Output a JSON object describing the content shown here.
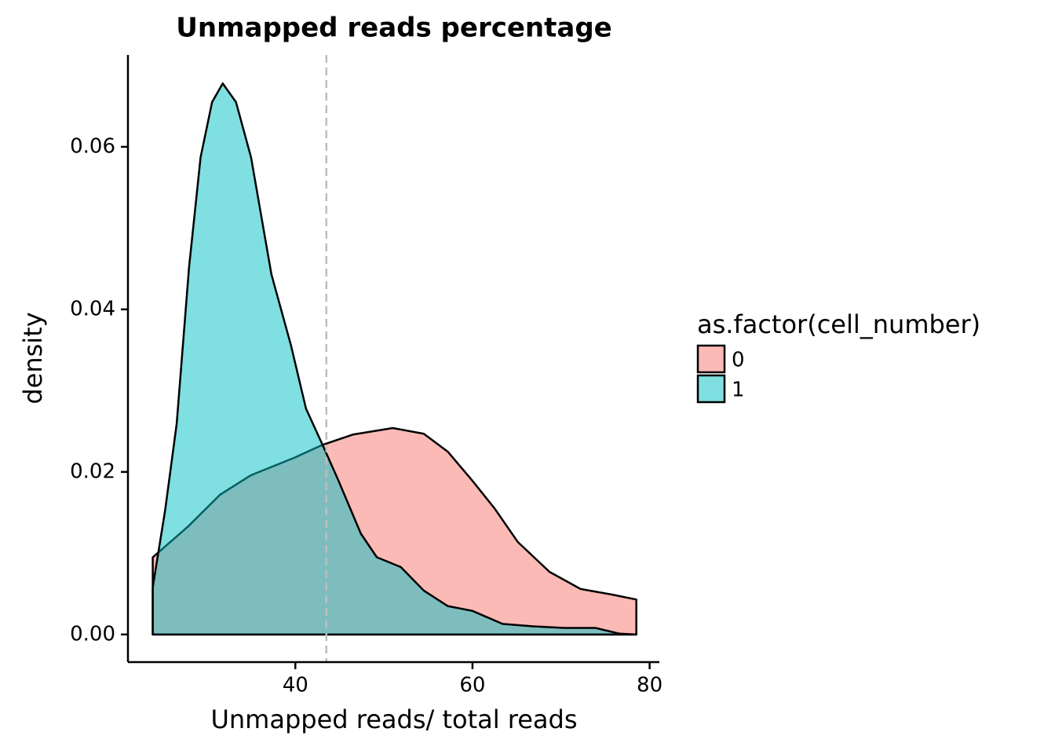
{
  "chart_data": {
    "type": "density",
    "title": "Unmapped reads percentage",
    "x_label": "Unmapped reads/ total reads",
    "y_label": "density",
    "legend_title": "as.factor(cell_number)",
    "legend_position": "right",
    "xlim": [
      21.1,
      81.1
    ],
    "ylim": [
      -0.0034,
      0.0713
    ],
    "xticks": [
      40,
      60,
      80
    ],
    "yticks": [
      {
        "value": 0,
        "label": "0.00"
      },
      0.02,
      0.04,
      0.06
    ],
    "vline": 43.5,
    "vline_color": "#bebebe",
    "fill_opacity": 0.5,
    "series": [
      {
        "name": "0",
        "color": "#F8766D",
        "x": [
          23.9,
          27.9,
          31.5,
          35,
          40,
          43,
          46.5,
          51,
          54.5,
          57.2,
          60,
          62.5,
          65.1,
          68.7,
          72.2,
          75.8,
          78.5
        ],
        "values": [
          0.0095,
          0.0133,
          0.0172,
          0.0196,
          0.0218,
          0.0233,
          0.0246,
          0.0254,
          0.0247,
          0.0225,
          0.0189,
          0.0155,
          0.0114,
          0.0077,
          0.0056,
          0.0049,
          0.0043
        ]
      },
      {
        "name": "1",
        "color": "#00BFC4",
        "x": [
          23.9,
          25.3,
          26.6,
          28,
          29.3,
          30.6,
          31.8,
          33.3,
          35,
          37.3,
          39.5,
          41.2,
          43,
          44.8,
          47.4,
          49.2,
          51.9,
          54.5,
          57.2,
          60,
          63.4,
          66.9,
          70.4,
          73.9,
          76.6,
          78.5
        ],
        "values": [
          0.0058,
          0.0153,
          0.0259,
          0.0452,
          0.0587,
          0.0655,
          0.0678,
          0.0655,
          0.0587,
          0.0443,
          0.0356,
          0.0278,
          0.0235,
          0.0191,
          0.0124,
          0.0095,
          0.0083,
          0.0054,
          0.0035,
          0.0029,
          0.0013,
          0.001,
          0.0008,
          0.0008,
          0.0001,
          0
        ]
      }
    ]
  }
}
